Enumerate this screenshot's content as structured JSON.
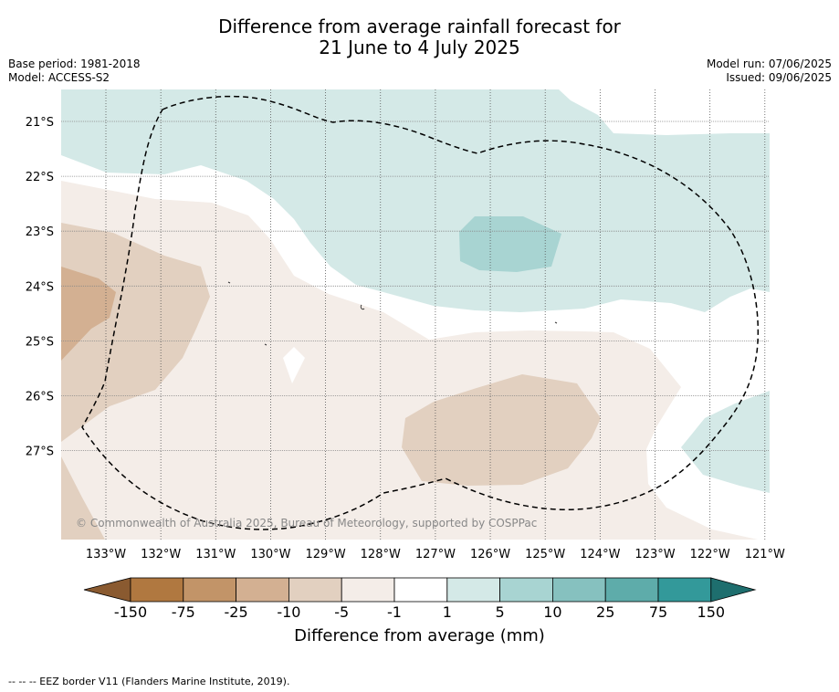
{
  "title": {
    "line1": "Difference from average rainfall forecast for",
    "line2": "21 June to 4 July 2025"
  },
  "left_meta": {
    "base_period": "Base period: 1981-2018",
    "model": "Model: ACCESS-S2"
  },
  "right_meta": {
    "model_run": "Model run: 07/06/2025",
    "issued": "Issued: 09/06/2025"
  },
  "map": {
    "copyright": "© Commonwealth of Australia 2025, Bureau of Meteorology, supported by COSPPac",
    "lat_labels": [
      "21°S",
      "22°S",
      "23°S",
      "24°S",
      "25°S",
      "26°S",
      "27°S"
    ],
    "lon_labels": [
      "133°W",
      "132°W",
      "131°W",
      "130°W",
      "129°W",
      "128°W",
      "127°W",
      "126°W",
      "125°W",
      "124°W",
      "123°W",
      "122°W",
      "121°W"
    ],
    "colors": {
      "dry_1_5": "#f4ede8",
      "dry_5_10": "#e2d0c0",
      "dry_10_25": "#d3b092",
      "wet_1_5": "#d4e9e7",
      "wet_5_10": "#a8d4d2"
    }
  },
  "colorbar": {
    "ticks": [
      "-150",
      "-75",
      "-25",
      "-10",
      "-5",
      "-1",
      "1",
      "5",
      "10",
      "25",
      "75",
      "150"
    ],
    "colors": [
      "#8a5a30",
      "#b07840",
      "#c29468",
      "#d3b092",
      "#e2d0c0",
      "#f4ede8",
      "#ffffff",
      "#d4e9e7",
      "#a8d4d2",
      "#86c1bf",
      "#5eacaa",
      "#33999a",
      "#1e6e6e"
    ],
    "label": "Difference from average (mm)"
  },
  "footnote": "--  --  -- EEZ border V11 (Flanders Marine Institute, 2019)."
}
